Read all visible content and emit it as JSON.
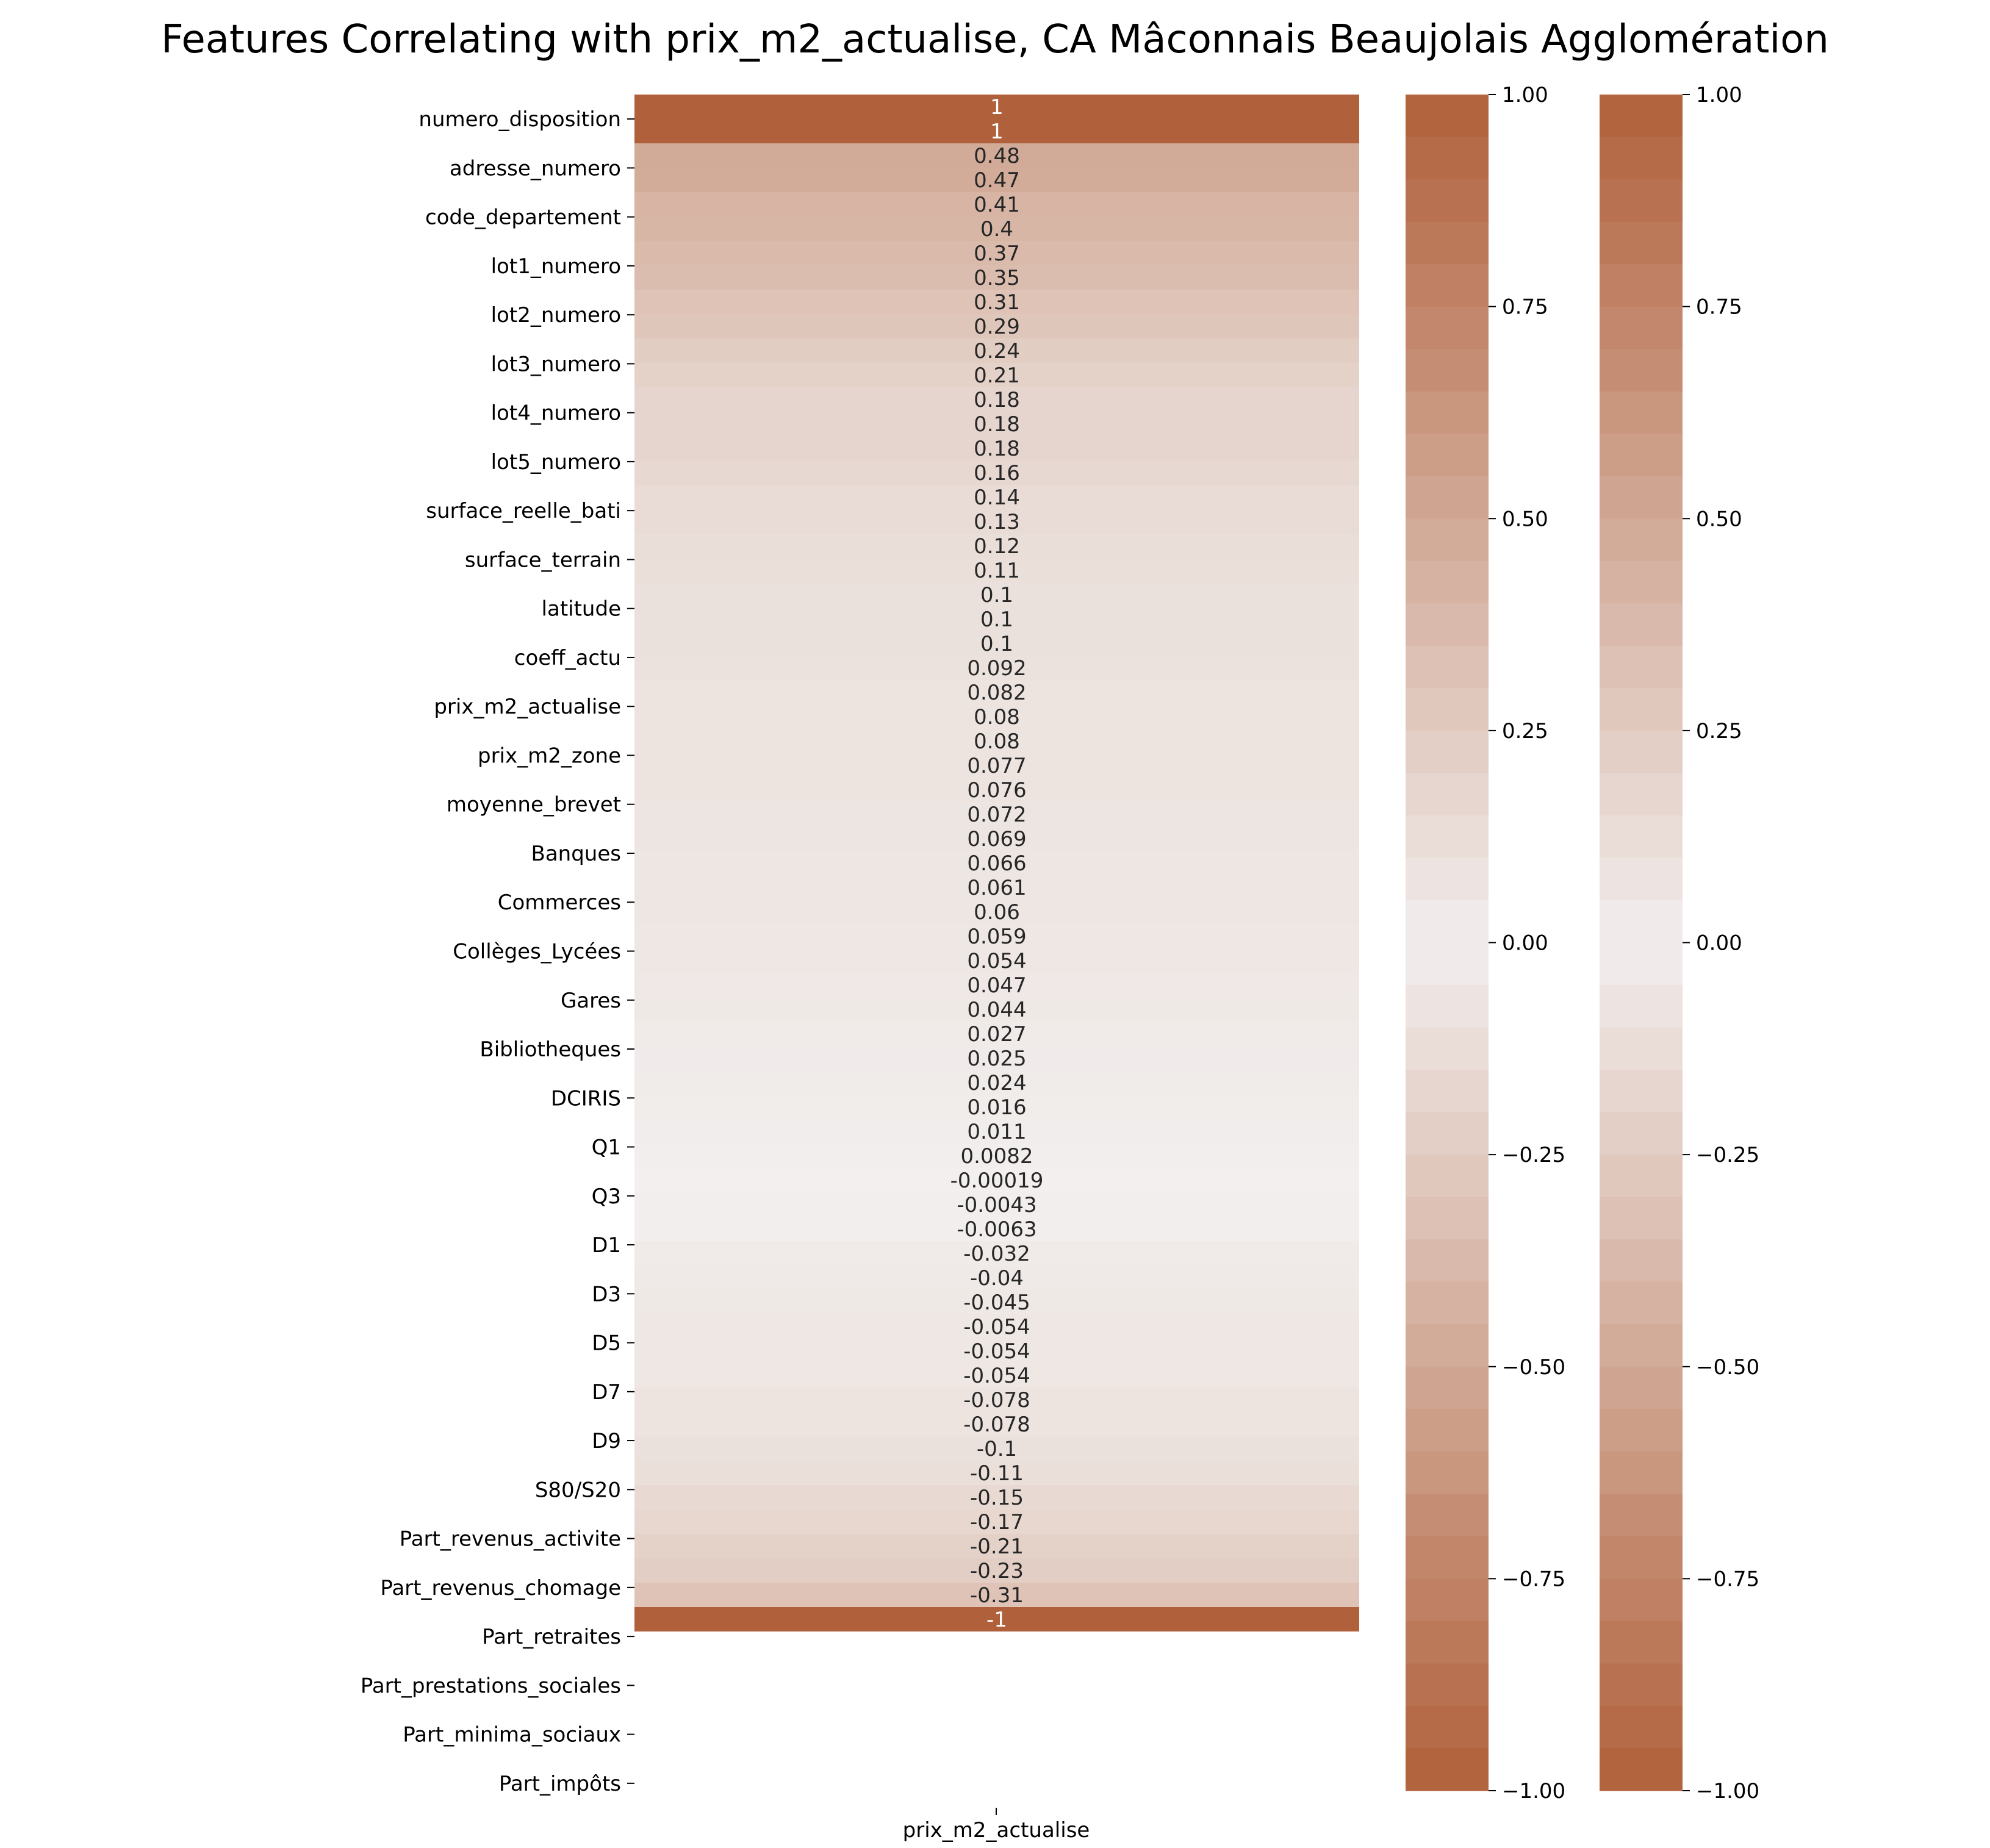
{
  "chart_data": {
    "type": "heatmap",
    "title": "Features Correlating with prix_m2_actualise, CA Mâconnais Beaujolais Agglomération",
    "xlabel": "",
    "ylabel": "",
    "column": "prix_m2_actualise",
    "y_tick_labels": [
      "numero_disposition",
      "adresse_numero",
      "code_departement",
      "lot1_numero",
      "lot2_numero",
      "lot3_numero",
      "lot4_numero",
      "lot5_numero",
      "surface_reelle_bati",
      "surface_terrain",
      "latitude",
      "coeff_actu",
      "prix_m2_actualise",
      "prix_m2_zone",
      "moyenne_brevet",
      "Banques",
      "Commerces",
      "Collèges_Lycées",
      "Gares",
      "Bibliotheques",
      "DCIRIS",
      "Q1",
      "Q3",
      "D1",
      "D3",
      "D5",
      "D7",
      "D9",
      "S80/S20",
      "Part_revenus_activite",
      "Part_revenus_chomage",
      "Part_retraites",
      "Part_prestations_sociales",
      "Part_minima_sociaux",
      "Part_impôts"
    ],
    "cell_values": [
      1,
      1,
      0.48,
      0.47,
      0.41,
      0.4,
      0.37,
      0.35,
      0.31,
      0.29,
      0.24,
      0.21,
      0.18,
      0.18,
      0.18,
      0.16,
      0.14,
      0.13,
      0.12,
      0.11,
      0.1,
      0.1,
      0.1,
      0.092,
      0.082,
      0.08,
      0.08,
      0.077,
      0.076,
      0.072,
      0.069,
      0.066,
      0.061,
      0.06,
      0.059,
      0.054,
      0.047,
      0.044,
      0.027,
      0.025,
      0.024,
      0.016,
      0.011,
      0.0082,
      -0.00019,
      -0.0043,
      -0.0063,
      -0.032,
      -0.04,
      -0.045,
      -0.054,
      -0.054,
      -0.054,
      -0.078,
      -0.078,
      -0.1,
      -0.11,
      -0.15,
      -0.17,
      -0.21,
      -0.23,
      -0.31,
      -1
    ],
    "cell_labels": [
      "1",
      "1",
      "0.48",
      "0.47",
      "0.41",
      "0.4",
      "0.37",
      "0.35",
      "0.31",
      "0.29",
      "0.24",
      "0.21",
      "0.18",
      "0.18",
      "0.18",
      "0.16",
      "0.14",
      "0.13",
      "0.12",
      "0.11",
      "0.1",
      "0.1",
      "0.1",
      "0.092",
      "0.082",
      "0.08",
      "0.08",
      "0.077",
      "0.076",
      "0.072",
      "0.069",
      "0.066",
      "0.061",
      "0.06",
      "0.059",
      "0.054",
      "0.047",
      "0.044",
      "0.027",
      "0.025",
      "0.024",
      "0.016",
      "0.011",
      "0.0082",
      "-0.00019",
      "-0.0043",
      "-0.0063",
      "-0.032",
      "-0.04",
      "-0.045",
      "-0.054",
      "-0.054",
      "-0.054",
      "-0.078",
      "-0.078",
      "-0.1",
      "-0.11",
      "-0.15",
      "-0.17",
      "-0.21",
      "-0.23",
      "-0.31",
      "-1"
    ],
    "value_range": [
      -1,
      1
    ],
    "colorbar_ticks": [
      "1.00",
      "0.75",
      "0.50",
      "0.25",
      "0.00",
      "−0.25",
      "−0.50",
      "−0.75",
      "−1.00"
    ],
    "colorbar_tick_values": [
      1,
      0.75,
      0.5,
      0.25,
      0,
      -0.25,
      -0.5,
      -0.75,
      -1
    ],
    "colorbar_count": 2,
    "colors": {
      "extreme": "#b0603a",
      "center": "#f2efee"
    },
    "grid": false
  }
}
